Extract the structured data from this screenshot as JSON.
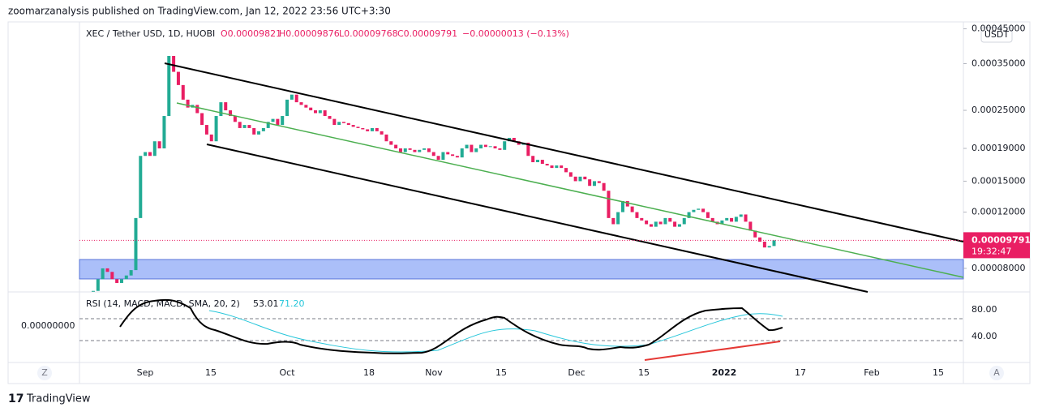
{
  "header": {
    "publisher": "zoomarzanalysis published on TradingView.com, Jan 12, 2022 23:56 UTC+3:30",
    "symbol": "XEC / Tether USD, 1D, HUOBI",
    "open": "O0.00009821",
    "high": "H0.00009876",
    "low": "L0.00009768",
    "close": "C0.00009791",
    "change": "−0.00000013 (−0.13%)"
  },
  "chart_data": {
    "type": "candlestick",
    "closes": [
      6.8e-05,
      7.4e-05,
      8e-05,
      7.8e-05,
      7.4e-05,
      7.2e-05,
      7.4e-05,
      7.6e-05,
      7.9e-05,
      0.000115,
      0.00018,
      0.000185,
      0.00018,
      0.0002,
      0.00019,
      0.00024,
      0.00037,
      0.00033,
      0.0003,
      0.00027,
      0.000255,
      0.00026,
      0.000245,
      0.000225,
      0.00021,
      0.0002,
      0.00024,
      0.000265,
      0.00025,
      0.00024,
      0.00023,
      0.00022,
      0.000225,
      0.00022,
      0.00021,
      0.000215,
      0.00022,
      0.00023,
      0.000235,
      0.000225,
      0.00024,
      0.00027,
      0.00028,
      0.000265,
      0.00026,
      0.000255,
      0.00025,
      0.000245,
      0.00025,
      0.00024,
      0.000235,
      0.000225,
      0.00023,
      0.000228,
      0.000225,
      0.000222,
      0.00022,
      0.000218,
      0.000215,
      0.00022,
      0.000215,
      0.00021,
      0.0002,
      0.000195,
      0.00019,
      0.000185,
      0.00019,
      0.000188,
      0.000185,
      0.000188,
      0.00019,
      0.000185,
      0.00018,
      0.000175,
      0.000185,
      0.000182,
      0.00018,
      0.000178,
      0.00019,
      0.000195,
      0.000185,
      0.00019,
      0.000195,
      0.000192,
      0.000193,
      0.00019,
      0.000188,
      0.0002,
      0.000205,
      0.0002,
      0.000195,
      0.000198,
      0.00018,
      0.000172,
      0.000175,
      0.00017,
      0.000168,
      0.000165,
      0.000168,
      0.000165,
      0.00016,
      0.000155,
      0.00015,
      0.000155,
      0.000152,
      0.000145,
      0.00015,
      0.000148,
      0.00014,
      0.000115,
      0.00011,
      0.00012,
      0.00013,
      0.000125,
      0.00012,
      0.000115,
      0.000113,
      0.00011,
      0.000108,
      0.000112,
      0.00011,
      0.000115,
      0.000112,
      0.000108,
      0.00011,
      0.000115,
      0.00012,
      0.000122,
      0.000123,
      0.00012,
      0.000115,
      0.000112,
      0.00011,
      0.000113,
      0.000115,
      0.000112,
      0.000116,
      0.000118,
      0.000112,
      0.000105,
      0.0001,
      9.7e-05,
      9.3e-05,
      9.4e-05,
      9.791e-05
    ],
    "up_color": "#22ab94",
    "down_color": "#e91e63",
    "log_scale": true,
    "ylim": [
      6.75e-05,
      0.000473
    ],
    "yticks": [
      {
        "value": 0.00045,
        "label": "0.00045000"
      },
      {
        "value": 0.00035,
        "label": "0.00035000"
      },
      {
        "value": 0.00025,
        "label": "0.00025000"
      },
      {
        "value": 0.00019,
        "label": "0.00019000"
      },
      {
        "value": 0.00015,
        "label": "0.00015000"
      },
      {
        "value": 0.00012,
        "label": "0.00012000"
      },
      {
        "value": 8e-05,
        "label": "0.00008000"
      }
    ],
    "last_price": {
      "value": 9.791e-05,
      "label": "0.00009791"
    },
    "countdown": "19:32:47",
    "currency": "USDT",
    "x_labels": [
      "Sep",
      "15",
      "Oct",
      "18",
      "Nov",
      "15",
      "Dec",
      "15",
      "2022",
      "17",
      "Feb",
      "15"
    ]
  },
  "rsi": {
    "label": "RSI (14, MACD, MACD, SMA, 20, 2)",
    "value": "53.01",
    "signal": "71.20",
    "upper": "80.00",
    "lower": "40.00",
    "left_value": "0.00000000"
  },
  "controls": {
    "left": "Z",
    "right": "A"
  },
  "footer": {
    "brand": "TradingView"
  }
}
